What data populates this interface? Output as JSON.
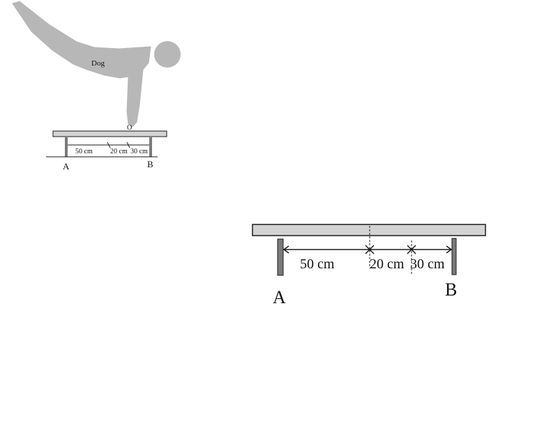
{
  "small_figure": {
    "body_label": "Dog",
    "point_label": "O",
    "segment_1": "50 cm",
    "segment_2": "20 cm",
    "segment_3": "30 cm",
    "support_a": "A",
    "support_b": "B"
  },
  "large_figure": {
    "segment_1": "50 cm",
    "segment_2": "20 cm",
    "segment_3": "30 cm",
    "support_a": "A",
    "support_b": "B"
  },
  "colors": {
    "body": "#b7b7b7",
    "beam": "#d3d3d3",
    "post": "#7a7a7a",
    "line": "#1a1a1a"
  }
}
